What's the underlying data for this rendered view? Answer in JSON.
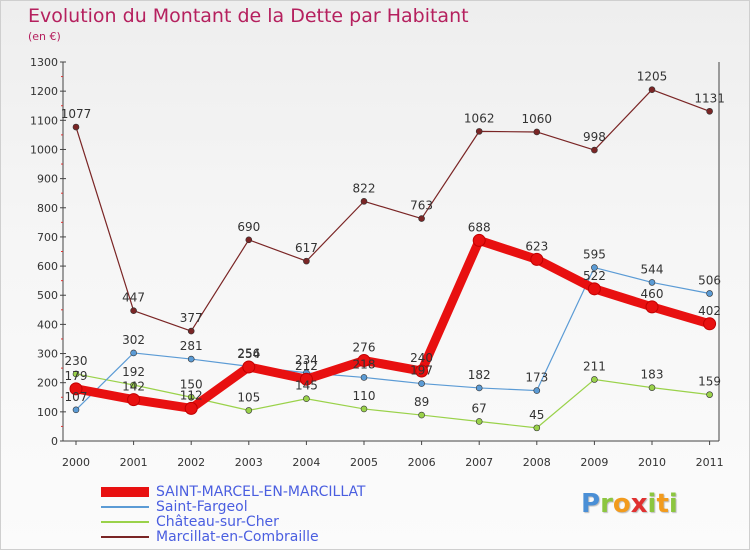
{
  "title": "Evolution du Montant de la Dette par Habitant",
  "subtitle": "(en €)",
  "logo": "Proxiti",
  "chart_data": {
    "type": "line",
    "title": "Evolution du Montant de la Dette par Habitant",
    "subtitle": "(en €)",
    "xlabel": "",
    "ylabel": "",
    "x": [
      "2000",
      "2001",
      "2002",
      "2003",
      "2004",
      "2005",
      "2006",
      "2007",
      "2008",
      "2009",
      "2010",
      "2011"
    ],
    "ylim": [
      0,
      1300
    ],
    "yticks": [
      0,
      100,
      200,
      300,
      400,
      500,
      600,
      700,
      800,
      900,
      1000,
      1100,
      1200,
      1300
    ],
    "grid": false,
    "legend_position": "bottom-left",
    "series": [
      {
        "name": "SAINT-MARCEL-EN-MARCILLAT",
        "color": "#e81010",
        "values": [
          179,
          142,
          112,
          254,
          212,
          276,
          240,
          688,
          623,
          522,
          460,
          402
        ],
        "labels": [
          "179",
          "142",
          "112",
          "254",
          "212",
          "276",
          "240",
          "688",
          "623",
          "522",
          "460",
          "402"
        ]
      },
      {
        "name": "Saint-Fargeol",
        "color": "#5b9bd5",
        "values": [
          107,
          302,
          281,
          256,
          234,
          218,
          197,
          182,
          173,
          595,
          544,
          506
        ],
        "labels": [
          "107",
          "302",
          "281",
          "256",
          "234",
          "218",
          "197",
          "182",
          "173",
          "595",
          "544",
          "506"
        ]
      },
      {
        "name": "Château-sur-Cher",
        "color": "#9ad24a",
        "values": [
          230,
          192,
          150,
          105,
          145,
          110,
          89,
          67,
          45,
          211,
          183,
          159
        ],
        "labels": [
          "230",
          "192",
          "150",
          "105",
          "145",
          "110",
          "89",
          "67",
          "45",
          "211",
          "183",
          "159"
        ]
      },
      {
        "name": "Marcillat-en-Combraille",
        "color": "#7a2525",
        "values": [
          1077,
          447,
          377,
          690,
          617,
          822,
          763,
          1062,
          1060,
          998,
          1205,
          1131
        ],
        "labels": [
          "1077",
          "447",
          "377",
          "690",
          "617",
          "822",
          "763",
          "1062",
          "1060",
          "998",
          "1205",
          "1131"
        ]
      }
    ]
  }
}
